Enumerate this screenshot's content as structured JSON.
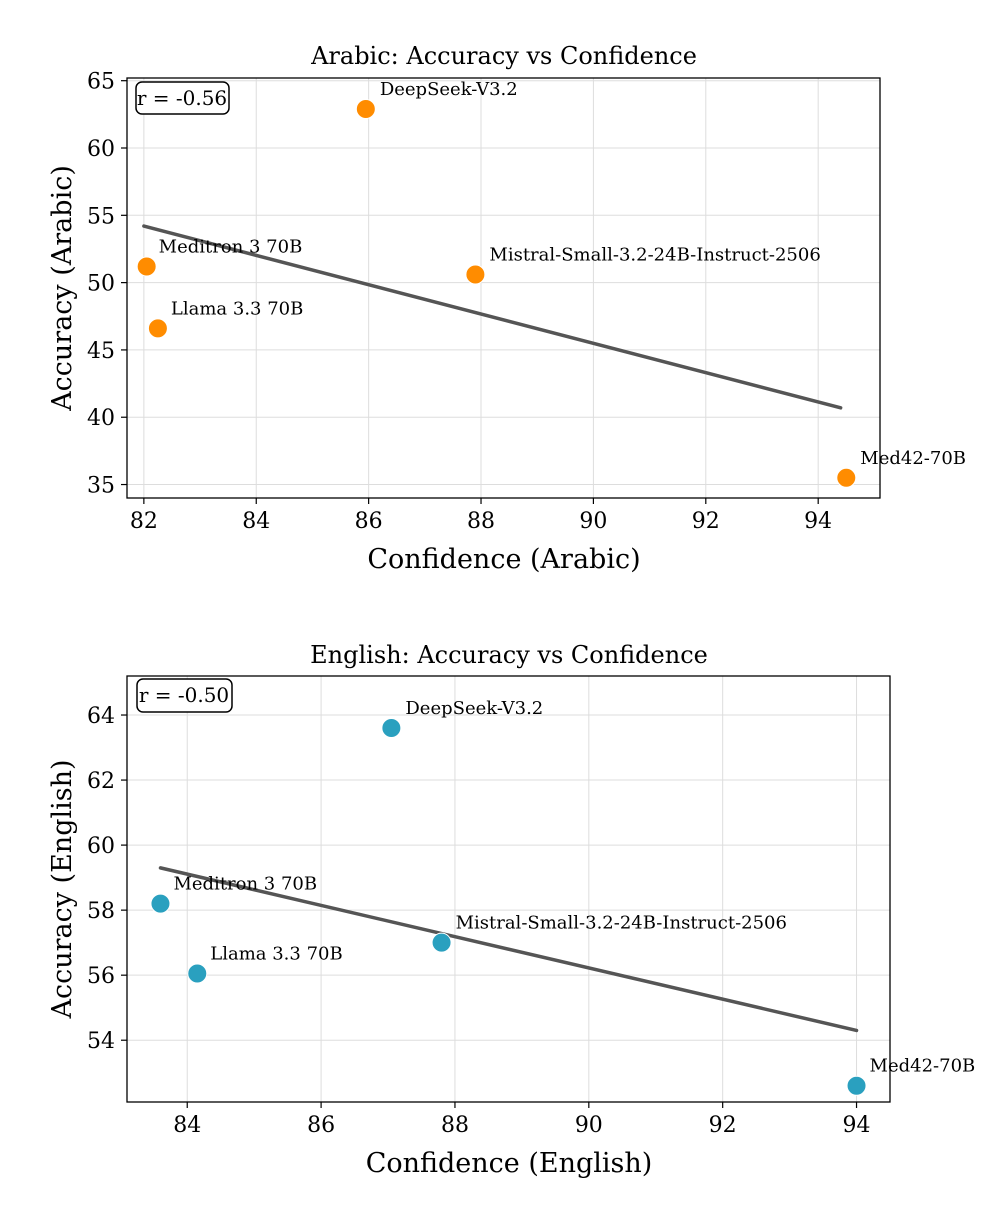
{
  "chart_data": [
    {
      "type": "scatter",
      "title": "Arabic: Accuracy vs Confidence",
      "xlabel": "Confidence (Arabic)",
      "ylabel": "Accuracy (Arabic)",
      "xlim": [
        81.7,
        95.1
      ],
      "ylim": [
        34.0,
        65.2
      ],
      "xticks": [
        82,
        84,
        86,
        88,
        90,
        92,
        94
      ],
      "yticks": [
        35,
        40,
        45,
        50,
        55,
        60,
        65
      ],
      "grid": true,
      "color": "#ff8c00",
      "annotation": "r = -0.56",
      "points": [
        {
          "label": "DeepSeek-V3.2",
          "x": 85.95,
          "y": 62.9
        },
        {
          "label": "Meditron 3 70B",
          "x": 82.05,
          "y": 51.2
        },
        {
          "label": "Mistral-Small-3.2-24B-Instruct-2506",
          "x": 87.9,
          "y": 50.6
        },
        {
          "label": "Llama 3.3 70B",
          "x": 82.25,
          "y": 46.6
        },
        {
          "label": "Med42-70B",
          "x": 94.5,
          "y": 35.5
        }
      ],
      "trendline": {
        "x": [
          82.0,
          94.4
        ],
        "y": [
          54.2,
          40.7
        ],
        "color": "#555555"
      }
    },
    {
      "type": "scatter",
      "title": "English: Accuracy vs Confidence",
      "xlabel": "Confidence (English)",
      "ylabel": "Accuracy (English)",
      "xlim": [
        83.1,
        94.5
      ],
      "ylim": [
        52.1,
        65.2
      ],
      "xticks": [
        84,
        86,
        88,
        90,
        92,
        94
      ],
      "yticks": [
        54,
        56,
        58,
        60,
        62,
        64
      ],
      "grid": true,
      "color": "#2aa0bf",
      "annotation": "r = -0.50",
      "points": [
        {
          "label": "DeepSeek-V3.2",
          "x": 87.05,
          "y": 63.6
        },
        {
          "label": "Meditron 3 70B",
          "x": 83.6,
          "y": 58.2
        },
        {
          "label": "Mistral-Small-3.2-24B-Instruct-2506",
          "x": 87.8,
          "y": 57.0
        },
        {
          "label": "Llama 3.3 70B",
          "x": 84.15,
          "y": 56.05
        },
        {
          "label": "Med42-70B",
          "x": 94.0,
          "y": 52.6
        }
      ],
      "trendline": {
        "x": [
          83.6,
          94.0
        ],
        "y": [
          59.3,
          54.3
        ],
        "color": "#555555"
      }
    }
  ]
}
